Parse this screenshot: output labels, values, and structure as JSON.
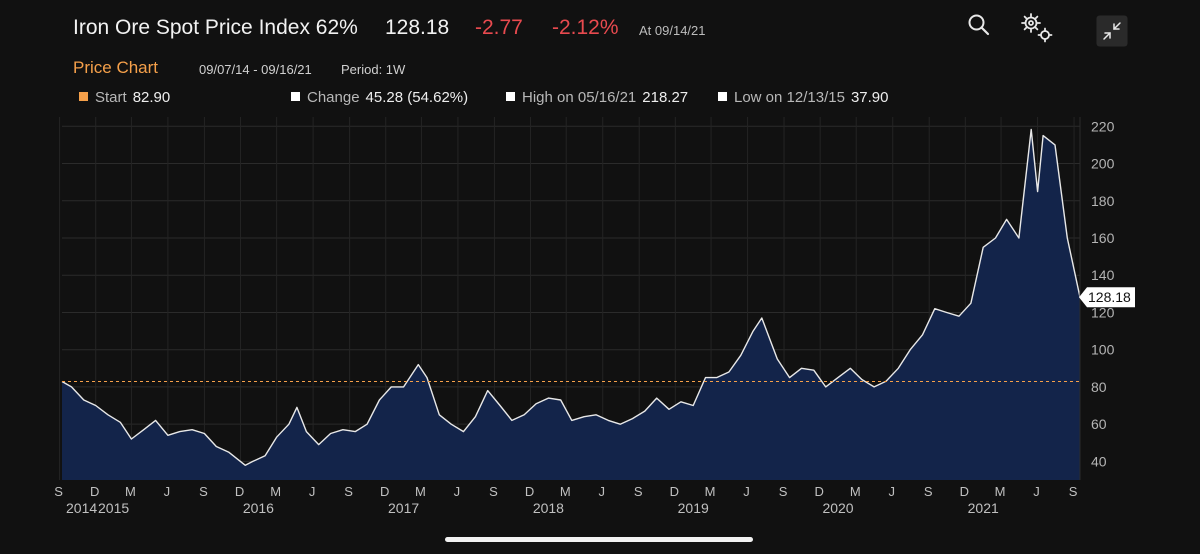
{
  "header": {
    "title": "Iron Ore Spot Price Index 62%",
    "price": "128.18",
    "change": "-2.77",
    "change_pct": "-2.12%",
    "as_of": "At 09/14/21",
    "icons": [
      "search-icon",
      "settings-gears-icon",
      "collapse-icon"
    ]
  },
  "subheader": {
    "label": "Price Chart",
    "range": "09/07/14 - 09/16/21",
    "period": "Period: 1W"
  },
  "legend": {
    "start": {
      "label": "Start",
      "value": "82.90",
      "color": "#f5a04a"
    },
    "change": {
      "label": "Change",
      "value": "45.28 (54.62%)",
      "color": "#ffffff"
    },
    "high": {
      "label": "High on 05/16/21",
      "value": "218.27",
      "color": "#ffffff"
    },
    "low": {
      "label": "Low on 12/13/15",
      "value": "37.90",
      "color": "#ffffff"
    }
  },
  "colors": {
    "accent": "#f5a04a",
    "negative": "#e84a4f",
    "area_fill": "#13244a",
    "line": "#e8e8e8",
    "background": "#111111"
  },
  "chart_data": {
    "type": "area",
    "title": "",
    "xlabel": "",
    "ylabel": "",
    "ylim": [
      30,
      225
    ],
    "xlim": [
      "2014-09-07",
      "2021-09-16"
    ],
    "yticks": [
      40,
      60,
      80,
      100,
      120,
      140,
      160,
      180,
      200,
      220
    ],
    "month_ticks": [
      "S",
      "D",
      "M",
      "J",
      "S",
      "D",
      "M",
      "J",
      "S",
      "D",
      "M",
      "J",
      "S",
      "D",
      "M",
      "J",
      "S",
      "D",
      "M",
      "J",
      "S",
      "D",
      "M",
      "J",
      "S",
      "D",
      "M",
      "J",
      "S"
    ],
    "year_labels": [
      "2014",
      "2015",
      "2016",
      "2017",
      "2018",
      "2019",
      "2020",
      "2021"
    ],
    "reference_line": {
      "value": 82.9,
      "color": "#f5a04a",
      "style": "dashed"
    },
    "last_value_label": "128.18",
    "grid": true,
    "series": [
      {
        "x": [
          "2014-09-07",
          "2014-10-01",
          "2014-11-01",
          "2014-12-01",
          "2015-01-01",
          "2015-02-01",
          "2015-03-01",
          "2015-04-01",
          "2015-05-01",
          "2015-06-01",
          "2015-07-01",
          "2015-08-01",
          "2015-09-01",
          "2015-10-01",
          "2015-11-01",
          "2015-12-13",
          "2016-01-01",
          "2016-02-01",
          "2016-03-01",
          "2016-04-01",
          "2016-04-21",
          "2016-05-15",
          "2016-06-15",
          "2016-07-15",
          "2016-08-15",
          "2016-09-15",
          "2016-10-15",
          "2016-11-15",
          "2016-12-15",
          "2017-01-15",
          "2017-02-21",
          "2017-03-15",
          "2017-04-15",
          "2017-05-15",
          "2017-06-15",
          "2017-07-15",
          "2017-08-15",
          "2017-09-15",
          "2017-10-15",
          "2017-11-15",
          "2017-12-15",
          "2018-01-15",
          "2018-02-15",
          "2018-03-15",
          "2018-04-15",
          "2018-05-15",
          "2018-06-15",
          "2018-07-15",
          "2018-08-15",
          "2018-09-15",
          "2018-10-15",
          "2018-11-15",
          "2018-12-15",
          "2019-01-15",
          "2019-02-15",
          "2019-03-15",
          "2019-04-15",
          "2019-05-15",
          "2019-06-15",
          "2019-07-07",
          "2019-08-15",
          "2019-09-15",
          "2019-10-15",
          "2019-11-15",
          "2019-12-15",
          "2020-01-15",
          "2020-02-15",
          "2020-03-15",
          "2020-04-15",
          "2020-05-15",
          "2020-06-15",
          "2020-07-15",
          "2020-08-15",
          "2020-09-15",
          "2020-10-15",
          "2020-11-15",
          "2020-12-15",
          "2021-01-15",
          "2021-02-15",
          "2021-03-15",
          "2021-04-15",
          "2021-05-16",
          "2021-06-01",
          "2021-06-15",
          "2021-07-15",
          "2021-08-15",
          "2021-09-16"
        ],
        "y": [
          82.9,
          80,
          73,
          70,
          65,
          61,
          52,
          57,
          62,
          54,
          56,
          57,
          55,
          48,
          45,
          37.9,
          40,
          43,
          53,
          60,
          69,
          56,
          49,
          55,
          57,
          56,
          60,
          73,
          80,
          80,
          92,
          85,
          65,
          60,
          56,
          64,
          78,
          70,
          62,
          65,
          71,
          74,
          73,
          62,
          64,
          65,
          62,
          60,
          63,
          67,
          74,
          68,
          72,
          70,
          85,
          85,
          88,
          97,
          110,
          117,
          95,
          85,
          90,
          89,
          80,
          85,
          90,
          84,
          80,
          83,
          90,
          100,
          108,
          122,
          120,
          118,
          125,
          155,
          160,
          170,
          160,
          218.3,
          185,
          215,
          210,
          160,
          128.2
        ]
      }
    ]
  }
}
